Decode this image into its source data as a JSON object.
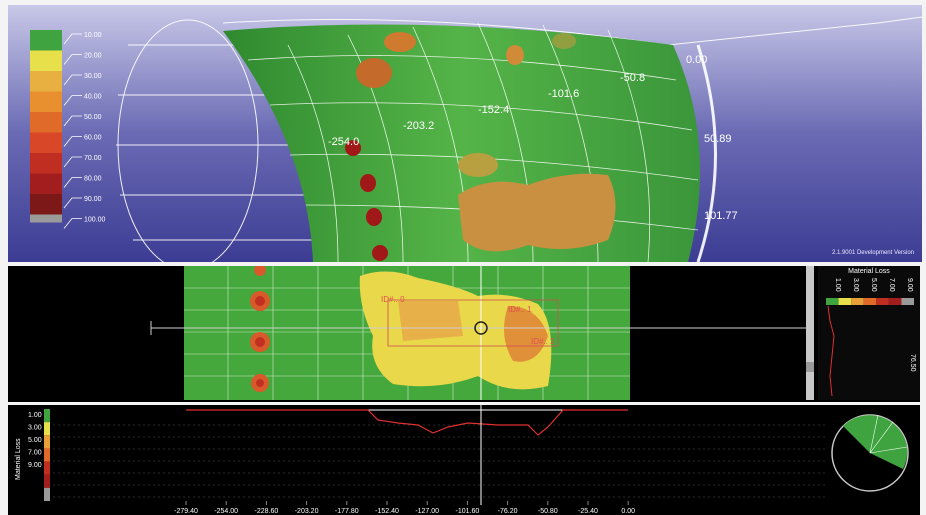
{
  "view3d": {
    "legend": {
      "values": [
        "10.00",
        "20.00",
        "30.00",
        "40.00",
        "50.00",
        "60.00",
        "70.00",
        "80.00",
        "90.00",
        "100.00"
      ],
      "colors": [
        "#3fa33f",
        "#e8e04a",
        "#e8b040",
        "#e89030",
        "#e06a28",
        "#d84828",
        "#c02e22",
        "#a21e1e",
        "#7c1818",
        "#9a9a9a"
      ]
    },
    "axial_labels": [
      "-254.0",
      "-203.2",
      "-152.4",
      "-101.6",
      "-50.8"
    ],
    "circ_labels": [
      "0.00",
      "50.89",
      "101.77"
    ],
    "version": "2.1.9001 Development Version"
  },
  "scan_panel": {
    "defect_labels": [
      "ID#.. 0",
      "ID#.. 1",
      "ID#.. 2"
    ],
    "side_title": "Material Loss",
    "side_scale": [
      "1.00",
      "3.00",
      "5.00",
      "7.00",
      "9.00"
    ],
    "side_colors": [
      "#3fa33f",
      "#e8e04a",
      "#e8a038",
      "#e06a28",
      "#c02e22",
      "#a21e1e",
      "#9a9a9a"
    ],
    "side_value": "76.50"
  },
  "plot_panel": {
    "y_label": "Material Loss",
    "y_ticks": [
      "1.00",
      "3.00",
      "5.00",
      "7.00",
      "9.00"
    ],
    "y_colors": [
      "#3fa33f",
      "#e8e04a",
      "#e8a038",
      "#e06a28",
      "#c02e22",
      "#a21e1e",
      "#9a9a9a"
    ],
    "x_ticks": [
      "-279.40",
      "-254.00",
      "-228.60",
      "-203.20",
      "-177.80",
      "-152.40",
      "-127.00",
      "-101.60",
      "-76.20",
      "-50.80",
      "-25.40",
      "0.00"
    ]
  }
}
